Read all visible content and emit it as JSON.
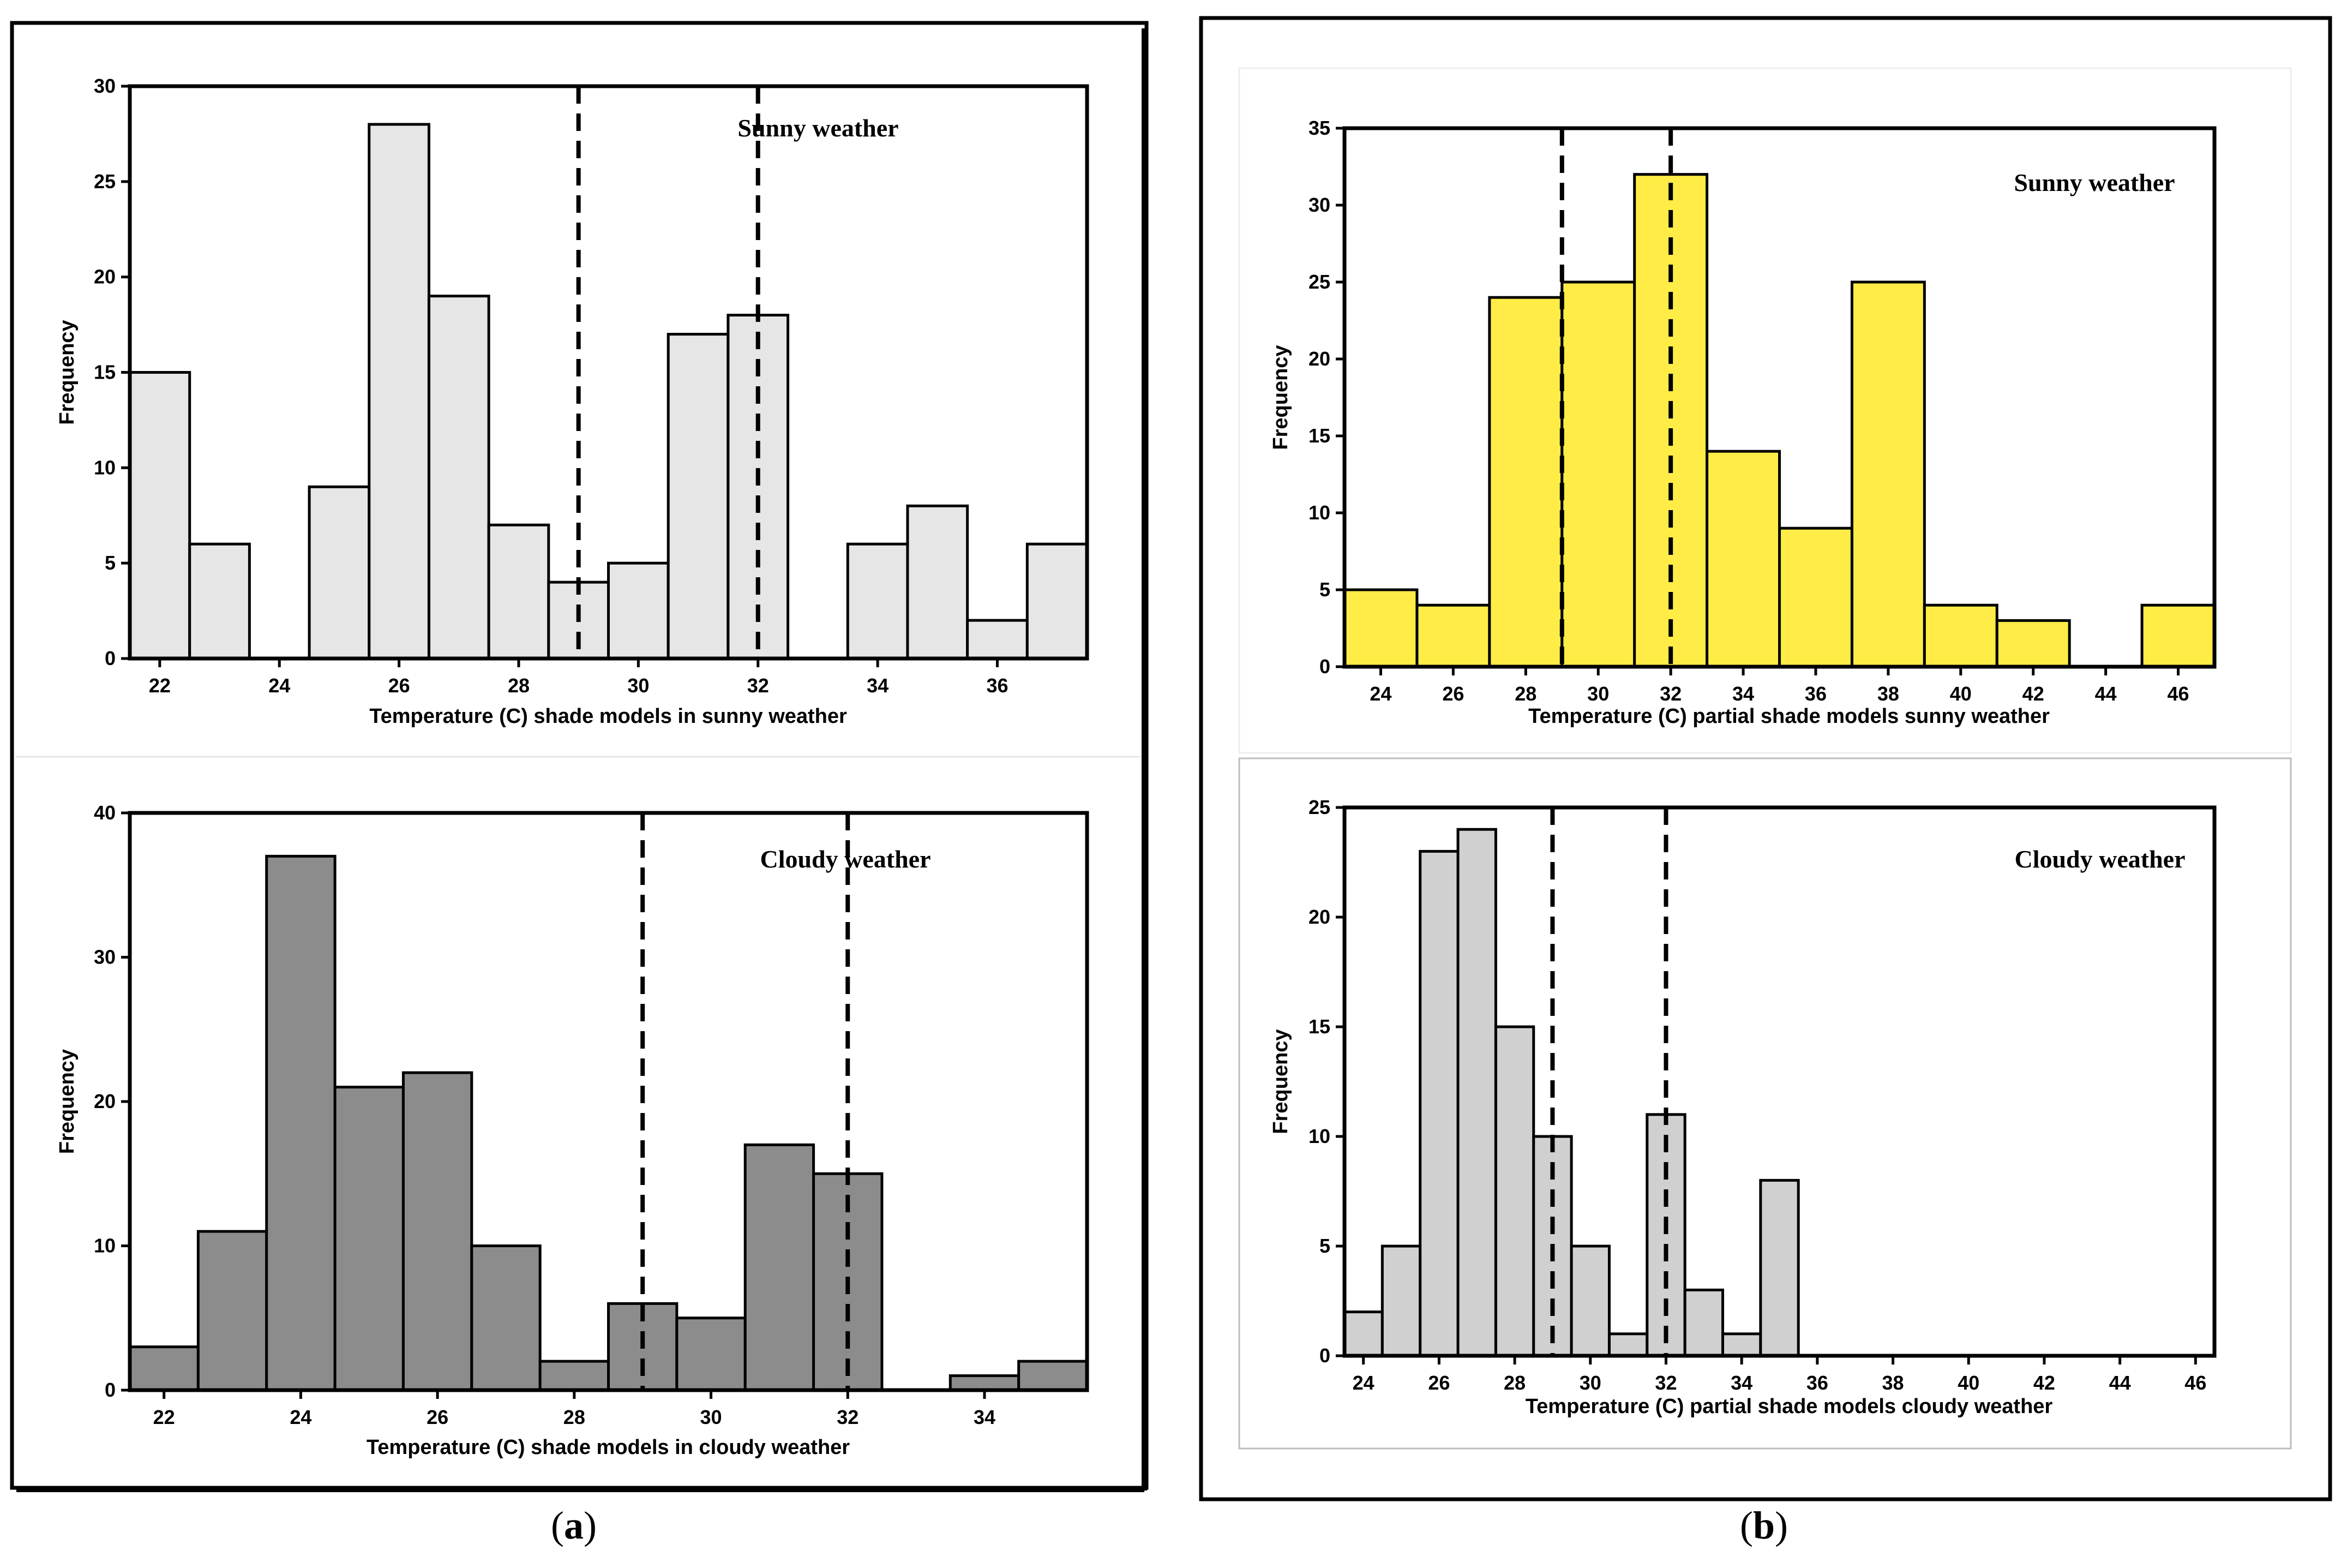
{
  "colors": {
    "light_gray": "#e6e6e6",
    "dark_gray": "#8c8c8c",
    "yellow": "#ffec47",
    "mid_gray": "#d0d0d0",
    "ink": "#000000"
  },
  "panel_labels": {
    "a": "a",
    "b": "b"
  },
  "chart_data": [
    {
      "type": "bar",
      "subtype": "histogram",
      "panel": "a",
      "title": "Sunny weather",
      "xlabel": "Temperature (C) shade models in sunny weather",
      "ylabel": "Frequency",
      "xlim": [
        21.5,
        37.5
      ],
      "ylim": [
        0,
        30
      ],
      "xticks": [
        22,
        24,
        26,
        28,
        30,
        32,
        34,
        36
      ],
      "yticks": [
        0,
        5,
        10,
        15,
        20,
        25,
        30
      ],
      "bin_width": 1,
      "bins": [
        {
          "x": 22,
          "value": 15
        },
        {
          "x": 23,
          "value": 6
        },
        {
          "x": 24,
          "value": 0
        },
        {
          "x": 25,
          "value": 9
        },
        {
          "x": 26,
          "value": 28
        },
        {
          "x": 27,
          "value": 19
        },
        {
          "x": 28,
          "value": 7
        },
        {
          "x": 29,
          "value": 4
        },
        {
          "x": 30,
          "value": 5
        },
        {
          "x": 31,
          "value": 17
        },
        {
          "x": 32,
          "value": 18
        },
        {
          "x": 33,
          "value": 0
        },
        {
          "x": 34,
          "value": 6
        },
        {
          "x": 35,
          "value": 8
        },
        {
          "x": 36,
          "value": 2
        },
        {
          "x": 37,
          "value": 6
        }
      ],
      "reference_lines": [
        29,
        32
      ],
      "fill": "light_gray"
    },
    {
      "type": "bar",
      "subtype": "histogram",
      "panel": "a",
      "title": "Cloudy weather",
      "xlabel": "Temperature (C) shade models in cloudy weather",
      "ylabel": "Frequency",
      "xlim": [
        21.5,
        35.5
      ],
      "ylim": [
        0,
        40
      ],
      "xticks": [
        22,
        24,
        26,
        28,
        30,
        32,
        34
      ],
      "yticks": [
        0,
        10,
        20,
        30,
        40
      ],
      "bin_width": 1,
      "bins": [
        {
          "x": 22,
          "value": 3
        },
        {
          "x": 23,
          "value": 11
        },
        {
          "x": 24,
          "value": 37
        },
        {
          "x": 25,
          "value": 21
        },
        {
          "x": 26,
          "value": 22
        },
        {
          "x": 27,
          "value": 10
        },
        {
          "x": 28,
          "value": 2
        },
        {
          "x": 29,
          "value": 6
        },
        {
          "x": 30,
          "value": 5
        },
        {
          "x": 31,
          "value": 17
        },
        {
          "x": 32,
          "value": 15
        },
        {
          "x": 33,
          "value": 0
        },
        {
          "x": 34,
          "value": 1
        },
        {
          "x": 35,
          "value": 2
        }
      ],
      "reference_lines": [
        29,
        32
      ],
      "fill": "dark_gray"
    },
    {
      "type": "bar",
      "subtype": "histogram",
      "panel": "b",
      "title": "Sunny weather",
      "xlabel": "Temperature (C) partial shade models sunny weather",
      "ylabel": "Frequency",
      "xlim": [
        23,
        47
      ],
      "ylim": [
        0,
        35
      ],
      "xticks": [
        24,
        26,
        28,
        30,
        32,
        34,
        36,
        38,
        40,
        42,
        44,
        46
      ],
      "yticks": [
        0,
        5,
        10,
        15,
        20,
        25,
        30,
        35
      ],
      "bin_width": 2,
      "bins": [
        {
          "x": 24,
          "value": 5
        },
        {
          "x": 26,
          "value": 4
        },
        {
          "x": 28,
          "value": 24
        },
        {
          "x": 30,
          "value": 25
        },
        {
          "x": 32,
          "value": 32
        },
        {
          "x": 34,
          "value": 14
        },
        {
          "x": 36,
          "value": 9
        },
        {
          "x": 38,
          "value": 25
        },
        {
          "x": 40,
          "value": 4
        },
        {
          "x": 42,
          "value": 3
        },
        {
          "x": 44,
          "value": 0
        },
        {
          "x": 46,
          "value": 4
        }
      ],
      "reference_lines": [
        29,
        32
      ],
      "fill": "yellow"
    },
    {
      "type": "bar",
      "subtype": "histogram",
      "panel": "b",
      "title": "Cloudy weather",
      "xlabel": "Temperature (C) partial shade models cloudy weather",
      "ylabel": "Frequency",
      "xlim": [
        23.5,
        46.5
      ],
      "ylim": [
        0,
        25
      ],
      "xticks": [
        24,
        26,
        28,
        30,
        32,
        34,
        36,
        38,
        40,
        42,
        44,
        46
      ],
      "yticks": [
        0,
        5,
        10,
        15,
        20,
        25
      ],
      "bin_width": 1,
      "bins": [
        {
          "x": 24,
          "value": 2
        },
        {
          "x": 25,
          "value": 5
        },
        {
          "x": 26,
          "value": 23
        },
        {
          "x": 27,
          "value": 24
        },
        {
          "x": 28,
          "value": 15
        },
        {
          "x": 29,
          "value": 10
        },
        {
          "x": 30,
          "value": 5
        },
        {
          "x": 31,
          "value": 1
        },
        {
          "x": 32,
          "value": 11
        },
        {
          "x": 33,
          "value": 3
        },
        {
          "x": 34,
          "value": 1
        },
        {
          "x": 35,
          "value": 8
        }
      ],
      "reference_lines": [
        29,
        32
      ],
      "fill": "mid_gray"
    }
  ]
}
